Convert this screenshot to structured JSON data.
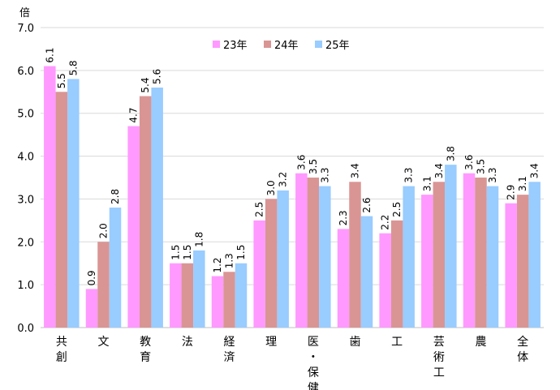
{
  "chart_data": {
    "type": "bar",
    "ylabel": "倍",
    "ylim": [
      0,
      7
    ],
    "yticks": [
      "0.0",
      "1.0",
      "2.0",
      "3.0",
      "4.0",
      "5.0",
      "6.0",
      "7.0"
    ],
    "grid": true,
    "legend_position": "top-center",
    "categories": [
      "共創",
      "文",
      "教育",
      "法",
      "経済",
      "理",
      "医・保健",
      "歯",
      "工",
      "芸術工",
      "農",
      "全体"
    ],
    "series": [
      {
        "name": "23年",
        "color": "#ff99ff",
        "values": [
          6.1,
          0.9,
          4.7,
          1.5,
          1.2,
          2.5,
          3.6,
          2.3,
          2.2,
          3.1,
          3.6,
          2.9
        ]
      },
      {
        "name": "24年",
        "color": "#d99594",
        "values": [
          5.5,
          2.0,
          5.4,
          1.5,
          1.3,
          3.0,
          3.5,
          3.4,
          2.5,
          3.4,
          3.5,
          3.1
        ]
      },
      {
        "name": "25年",
        "color": "#99ccff",
        "values": [
          5.8,
          2.8,
          5.6,
          1.8,
          1.5,
          3.2,
          3.3,
          2.6,
          3.3,
          3.8,
          3.3,
          3.4
        ]
      }
    ]
  }
}
